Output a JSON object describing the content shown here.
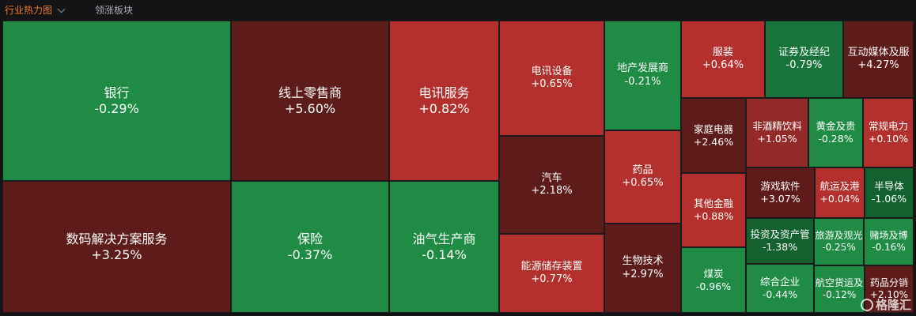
{
  "header": {
    "active_tab": "行业热力图",
    "second_tab": "领涨板块"
  },
  "tiles": [
    {
      "name": "银行",
      "pct": "-0.29%"
    },
    {
      "name": "数码解决方案服务",
      "pct": "+3.25%"
    },
    {
      "name": "线上零售商",
      "pct": "+5.60%"
    },
    {
      "name": "保险",
      "pct": "-0.37%"
    },
    {
      "name": "电讯服务",
      "pct": "+0.82%"
    },
    {
      "name": "油气生产商",
      "pct": "-0.14%"
    },
    {
      "name": "电讯设备",
      "pct": "+0.65%"
    },
    {
      "name": "汽车",
      "pct": "+2.18%"
    },
    {
      "name": "能源储存装置",
      "pct": "+0.77%"
    },
    {
      "name": "地产发展商",
      "pct": "-0.21%"
    },
    {
      "name": "药品",
      "pct": "+0.65%"
    },
    {
      "name": "生物技术",
      "pct": "+2.97%"
    },
    {
      "name": "服装",
      "pct": "+0.64%"
    },
    {
      "name": "证券及经纪",
      "pct": "-0.79%"
    },
    {
      "name": "互动媒体及服",
      "pct": "+4.27%"
    },
    {
      "name": "家庭电器",
      "pct": "+2.46%"
    },
    {
      "name": "非酒精饮料",
      "pct": "+1.05%"
    },
    {
      "name": "黄金及贵",
      "pct": "-0.28%"
    },
    {
      "name": "常规电力",
      "pct": "+0.10%"
    },
    {
      "name": "其他金融",
      "pct": "+0.88%"
    },
    {
      "name": "游戏软件",
      "pct": "+3.07%"
    },
    {
      "name": "航运及港",
      "pct": "+0.04%"
    },
    {
      "name": "半导体",
      "pct": "-1.06%"
    },
    {
      "name": "投资及资产管",
      "pct": "-1.38%"
    },
    {
      "name": "旅游及观光",
      "pct": "-0.25%"
    },
    {
      "name": "赌场及博",
      "pct": "-0.16%"
    },
    {
      "name": "煤炭",
      "pct": "-0.96%"
    },
    {
      "name": "综合企业",
      "pct": "-0.44%"
    },
    {
      "name": "航空货运及",
      "pct": "-0.12%"
    },
    {
      "name": "药品分销",
      "pct": "+2.10%"
    }
  ],
  "watermark": "格隆汇"
}
